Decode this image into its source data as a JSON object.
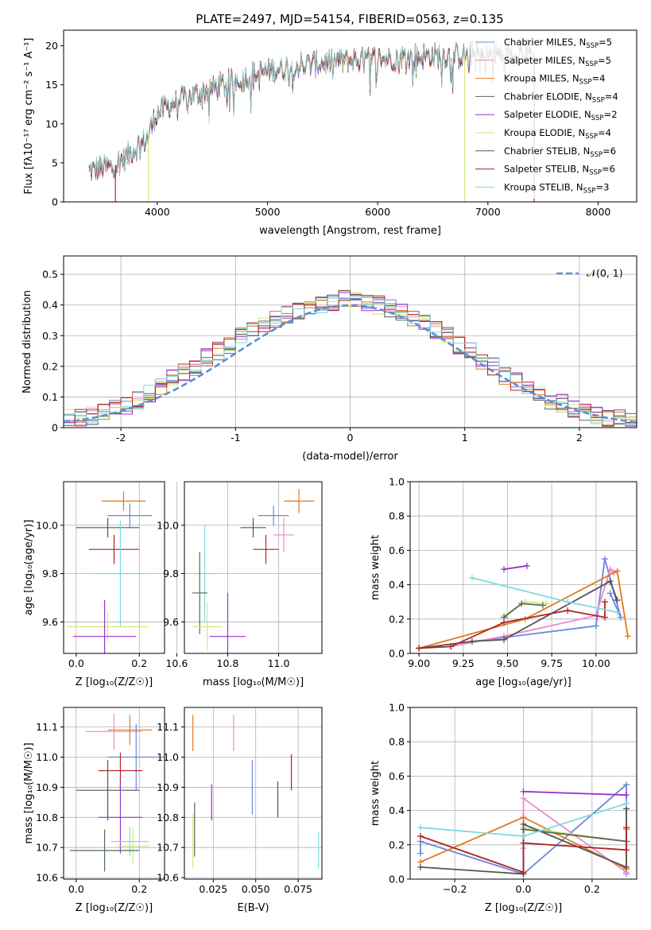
{
  "title": "PLATE=2497, MJD=54154, FIBERID=0563, z=0.135",
  "colors": {
    "chabrier_miles": "#6688dd",
    "salpeter_miles": "#ee88cc",
    "kroupa_miles": "#e07a1f",
    "chabrier_elodie": "#556b55",
    "salpeter_elodie": "#9932cc",
    "kroupa_elodie": "#d4e87a",
    "chabrier_stelib": "#555555",
    "salpeter_stelib": "#b22222",
    "kroupa_stelib": "#7fdada",
    "gauss": "#5b8fd6",
    "grid": "#b0b0b0"
  },
  "chart_data": [
    {
      "type": "line",
      "title": "PLATE=2497, MJD=54154, FIBERID=0563, z=0.135",
      "xlabel": "wavelength [Angstrom, rest frame]",
      "ylabel": "Flux [fλ10⁻¹⁷ erg cm⁻² s⁻¹ A⁻¹]",
      "xlim": [
        3150,
        8350
      ],
      "ylim": [
        0,
        22
      ],
      "xticks": [
        4000,
        5000,
        6000,
        7000,
        8000
      ],
      "yticks": [
        0,
        5,
        10,
        15,
        20
      ],
      "continuum": {
        "x": [
          3380,
          3600,
          3900,
          4000,
          4200,
          4600,
          4800,
          5000,
          5300,
          5600,
          5900,
          6200,
          6500,
          6800,
          7100,
          7400
        ],
        "y": [
          4.0,
          4.5,
          8.0,
          11.5,
          13.0,
          15.0,
          16.0,
          16.8,
          17.5,
          18.0,
          18.2,
          18.5,
          18.7,
          18.8,
          19.0,
          19.2
        ]
      },
      "legend_position": "upper-right",
      "legend": [
        {
          "key": "chabrier_miles",
          "label": "Chabrier MILES, N",
          "sub": "SSP",
          "n": "=5"
        },
        {
          "key": "salpeter_miles",
          "label": "Salpeter MILES, N",
          "sub": "SSP",
          "n": "=5"
        },
        {
          "key": "kroupa_miles",
          "label": "Kroupa MILES, N",
          "sub": "SSP",
          "n": "=4"
        },
        {
          "key": "chabrier_elodie",
          "label": "Chabrier ELODIE, N",
          "sub": "SSP",
          "n": "=4"
        },
        {
          "key": "salpeter_elodie",
          "label": "Salpeter ELODIE, N",
          "sub": "SSP",
          "n": "=2"
        },
        {
          "key": "kroupa_elodie",
          "label": "Kroupa ELODIE, N",
          "sub": "SSP",
          "n": "=4"
        },
        {
          "key": "chabrier_stelib",
          "label": "Chabrier STELIB, N",
          "sub": "SSP",
          "n": "=6"
        },
        {
          "key": "salpeter_stelib",
          "label": "Salpeter STELIB, N",
          "sub": "SSP",
          "n": "=6"
        },
        {
          "key": "kroupa_stelib",
          "label": "Kroupa STELIB, N",
          "sub": "SSP",
          "n": "=3"
        }
      ]
    },
    {
      "type": "histogram",
      "xlabel": "(data-model)/error",
      "ylabel": "Normed distribution",
      "xlim": [
        -2.5,
        2.5
      ],
      "ylim": [
        0,
        0.56
      ],
      "xticks": [
        -2,
        -1,
        0,
        1,
        2
      ],
      "yticks": [
        0.0,
        0.1,
        0.2,
        0.3,
        0.4,
        0.5
      ],
      "bin_width": 0.1,
      "gauss_legend": "𝒩(0, 1)",
      "outline": [
        0.03,
        0.03,
        0.04,
        0.05,
        0.06,
        0.07,
        0.09,
        0.11,
        0.13,
        0.16,
        0.18,
        0.2,
        0.23,
        0.25,
        0.27,
        0.3,
        0.32,
        0.33,
        0.35,
        0.37,
        0.38,
        0.39,
        0.4,
        0.41,
        0.42,
        0.42,
        0.41,
        0.4,
        0.39,
        0.38,
        0.36,
        0.34,
        0.32,
        0.3,
        0.27,
        0.25,
        0.22,
        0.2,
        0.17,
        0.15,
        0.13,
        0.11,
        0.09,
        0.08,
        0.06,
        0.05,
        0.04,
        0.03,
        0.03,
        0.02
      ]
    },
    {
      "type": "errorbar",
      "xlabel": "Z [log₁₀(Z/Z☉)]",
      "ylabel": "age  [log₁₀(age/yr)]",
      "xlim": [
        -0.04,
        0.28
      ],
      "ylim": [
        9.47,
        10.18
      ],
      "xticks": [
        {
          "v": 0.0,
          "t": "0.0"
        },
        {
          "v": 0.2,
          "t": "0.2"
        }
      ],
      "yticks": [
        {
          "v": 9.6,
          "t": "9.6"
        },
        {
          "v": 9.8,
          "t": "9.8"
        },
        {
          "v": 10.0,
          "t": "10.0"
        }
      ],
      "points": [
        {
          "c": "kroupa_miles",
          "x": 0.15,
          "xe": 0.07,
          "y": 10.1,
          "ye": 0.04
        },
        {
          "c": "chabrier_miles",
          "x": 0.17,
          "xe": 0.07,
          "y": 10.04,
          "ye": 0.05
        },
        {
          "c": "chabrier_stelib",
          "x": 0.1,
          "xe": 0.1,
          "y": 9.99,
          "ye": 0.04
        },
        {
          "c": "salpeter_stelib",
          "x": 0.12,
          "xe": 0.08,
          "y": 9.9,
          "ye": 0.06
        },
        {
          "c": "kroupa_stelib",
          "x": 0.14,
          "xe": 0.08,
          "y": 9.8,
          "ye": 0.22
        },
        {
          "c": "kroupa_elodie",
          "x": 0.1,
          "xe": 0.13,
          "y": 9.58,
          "ye": 0.06
        },
        {
          "c": "salpeter_elodie",
          "x": 0.09,
          "xe": 0.1,
          "y": 9.54,
          "ye": 0.15
        }
      ]
    },
    {
      "type": "errorbar",
      "xlabel": "mass [log₁₀(M/M☉)]",
      "ylabel": "",
      "xlim": [
        10.63,
        11.17
      ],
      "ylim": [
        9.47,
        10.18
      ],
      "xticks": [
        {
          "v": 10.6,
          "t": "10.6"
        },
        {
          "v": 10.8,
          "t": "10.8"
        },
        {
          "v": 11.0,
          "t": "11.0"
        }
      ],
      "yticks": [
        {
          "v": 9.6,
          "t": "9.6"
        },
        {
          "v": 9.8,
          "t": "9.8"
        },
        {
          "v": 10.0,
          "t": "10.0"
        }
      ],
      "points": [
        {
          "c": "kroupa_miles",
          "x": 11.08,
          "xe": 0.06,
          "y": 10.1,
          "ye": 0.05
        },
        {
          "c": "chabrier_miles",
          "x": 10.98,
          "xe": 0.06,
          "y": 10.04,
          "ye": 0.04
        },
        {
          "c": "salpeter_miles",
          "x": 11.02,
          "xe": 0.04,
          "y": 9.96,
          "ye": 0.07
        },
        {
          "c": "chabrier_stelib",
          "x": 10.9,
          "xe": 0.05,
          "y": 9.99,
          "ye": 0.04
        },
        {
          "c": "salpeter_stelib",
          "x": 10.95,
          "xe": 0.05,
          "y": 9.9,
          "ye": 0.06
        },
        {
          "c": "kroupa_stelib",
          "x": 10.71,
          "xe": 0.04,
          "y": 9.8,
          "ye": 0.2
        },
        {
          "c": "chabrier_elodie",
          "x": 10.69,
          "xe": 0.03,
          "y": 9.72,
          "ye": 0.17
        },
        {
          "c": "kroupa_elodie",
          "x": 10.72,
          "xe": 0.06,
          "y": 9.58,
          "ye": 0.1
        },
        {
          "c": "salpeter_elodie",
          "x": 10.8,
          "xe": 0.07,
          "y": 9.54,
          "ye": 0.18
        }
      ]
    },
    {
      "type": "line",
      "xlabel": "age  [log₁₀(age/yr)]",
      "ylabel": "mass weight",
      "xlim": [
        8.95,
        10.23
      ],
      "ylim": [
        0,
        1
      ],
      "xticks": [
        {
          "v": 9.0,
          "t": "9.00"
        },
        {
          "v": 9.25,
          "t": "9.25"
        },
        {
          "v": 9.5,
          "t": "9.50"
        },
        {
          "v": 9.75,
          "t": "9.75"
        },
        {
          "v": 10.0,
          "t": "10.00"
        }
      ],
      "yticks": [
        {
          "v": 0.0,
          "t": "0.0"
        },
        {
          "v": 0.2,
          "t": "0.2"
        },
        {
          "v": 0.4,
          "t": "0.4"
        },
        {
          "v": 0.6,
          "t": "0.6"
        },
        {
          "v": 0.8,
          "t": "0.8"
        },
        {
          "v": 1.0,
          "t": "1.0"
        }
      ],
      "series": [
        {
          "c": "chabrier_miles",
          "x": [
            9.0,
            10.0,
            10.05,
            10.14,
            10.08
          ],
          "y": [
            0.03,
            0.16,
            0.55,
            0.21,
            0.35
          ]
        },
        {
          "c": "salpeter_miles",
          "x": [
            9.18,
            9.48,
            10.0,
            10.08,
            10.1
          ],
          "y": [
            0.04,
            0.1,
            0.22,
            0.49,
            0.47
          ]
        },
        {
          "c": "kroupa_miles",
          "x": [
            9.0,
            9.6,
            10.12,
            10.18
          ],
          "y": [
            0.03,
            0.2,
            0.48,
            0.1
          ]
        },
        {
          "c": "salpeter_elodie",
          "x": [
            9.48,
            9.61
          ],
          "y": [
            0.49,
            0.51
          ]
        },
        {
          "c": "kroupa_elodie",
          "x": [
            9.48,
            9.6,
            9.72
          ],
          "y": [
            0.22,
            0.3,
            0.29
          ]
        },
        {
          "c": "chabrier_elodie",
          "x": [
            9.48,
            9.58,
            9.7
          ],
          "y": [
            0.21,
            0.29,
            0.28
          ]
        },
        {
          "c": "chabrier_stelib",
          "x": [
            9.0,
            9.3,
            9.48,
            10.08,
            10.12
          ],
          "y": [
            0.03,
            0.07,
            0.08,
            0.42,
            0.31
          ]
        },
        {
          "c": "salpeter_stelib",
          "x": [
            9.0,
            9.18,
            9.48,
            9.84,
            10.05,
            10.05
          ],
          "y": [
            0.03,
            0.04,
            0.18,
            0.25,
            0.21,
            0.3
          ]
        },
        {
          "c": "kroupa_stelib",
          "x": [
            9.3,
            9.84,
            10.12
          ],
          "y": [
            0.44,
            0.3,
            0.24
          ]
        }
      ]
    },
    {
      "type": "errorbar",
      "xlabel": "Z [log₁₀(Z/Z☉)]",
      "ylabel": "mass [log₁₀(M/M☉)]",
      "xlim": [
        -0.04,
        0.28
      ],
      "ylim": [
        10.595,
        11.165
      ],
      "xticks": [
        {
          "v": 0.0,
          "t": "0.0"
        },
        {
          "v": 0.2,
          "t": "0.2"
        }
      ],
      "yticks": [
        {
          "v": 10.6,
          "t": "10.6"
        },
        {
          "v": 10.7,
          "t": "10.7"
        },
        {
          "v": 10.8,
          "t": "10.8"
        },
        {
          "v": 10.9,
          "t": "10.9"
        },
        {
          "v": 11.0,
          "t": "11.0"
        },
        {
          "v": 11.1,
          "t": "11.1"
        }
      ],
      "points": [
        {
          "c": "salpeter_miles",
          "x": 0.12,
          "xe": 0.09,
          "y": 11.085,
          "ye": 0.06
        },
        {
          "c": "kroupa_miles",
          "x": 0.17,
          "xe": 0.07,
          "y": 11.09,
          "ye": 0.05
        },
        {
          "c": "chabrier_miles",
          "x": 0.19,
          "xe": 0.09,
          "y": 11.0,
          "ye": 0.11
        },
        {
          "c": "salpeter_stelib",
          "x": 0.14,
          "xe": 0.07,
          "y": 10.955,
          "ye": 0.06
        },
        {
          "c": "chabrier_stelib",
          "x": 0.1,
          "xe": 0.1,
          "y": 10.89,
          "ye": 0.1
        },
        {
          "c": "salpeter_elodie",
          "x": 0.14,
          "xe": 0.07,
          "y": 10.8,
          "ye": 0.12
        },
        {
          "c": "kroupa_stelib",
          "x": 0.17,
          "xe": 0.06,
          "y": 10.72,
          "ye": 0.05
        },
        {
          "c": "kroupa_elodie",
          "x": 0.18,
          "xe": 0.05,
          "y": 10.705,
          "ye": 0.06
        },
        {
          "c": "chabrier_elodie",
          "x": 0.09,
          "xe": 0.11,
          "y": 10.69,
          "ye": 0.07
        }
      ]
    },
    {
      "type": "errorbar",
      "xlabel": "E(B-V)",
      "ylabel": "",
      "xlim": [
        0.008,
        0.089
      ],
      "ylim": [
        10.595,
        11.165
      ],
      "xticks": [
        {
          "v": 0.025,
          "t": "0.025"
        },
        {
          "v": 0.05,
          "t": "0.050"
        },
        {
          "v": 0.075,
          "t": "0.075"
        }
      ],
      "yticks": [
        {
          "v": 10.6,
          "t": "10.6"
        },
        {
          "v": 10.7,
          "t": "10.7"
        },
        {
          "v": 10.8,
          "t": "10.8"
        },
        {
          "v": 10.9,
          "t": "10.9"
        },
        {
          "v": 11.0,
          "t": "11.0"
        },
        {
          "v": 11.1,
          "t": "11.1"
        }
      ],
      "points": [
        {
          "c": "kroupa_miles",
          "x": 0.013,
          "xe": 0,
          "y": 11.08,
          "ye": 0.06
        },
        {
          "c": "salpeter_miles",
          "x": 0.037,
          "xe": 0,
          "y": 11.08,
          "ye": 0.06
        },
        {
          "c": "salpeter_stelib",
          "x": 0.071,
          "xe": 0,
          "y": 10.95,
          "ye": 0.06
        },
        {
          "c": "chabrier_stelib",
          "x": 0.063,
          "xe": 0,
          "y": 10.86,
          "ye": 0.06
        },
        {
          "c": "chabrier_miles",
          "x": 0.048,
          "xe": 0,
          "y": 10.9,
          "ye": 0.09
        },
        {
          "c": "salpeter_elodie",
          "x": 0.024,
          "xe": 0,
          "y": 10.85,
          "ye": 0.06
        },
        {
          "c": "chabrier_elodie",
          "x": 0.014,
          "xe": 0,
          "y": 10.76,
          "ye": 0.09
        },
        {
          "c": "kroupa_elodie",
          "x": 0.013,
          "xe": 0,
          "y": 10.72,
          "ye": 0.09
        },
        {
          "c": "kroupa_stelib",
          "x": 0.087,
          "xe": 0,
          "y": 10.69,
          "ye": 0.06
        }
      ]
    },
    {
      "type": "line",
      "xlabel": "Z [log₁₀(Z/Z☉)]",
      "ylabel": "mass weight",
      "xlim": [
        -0.33,
        0.33
      ],
      "ylim": [
        0,
        1
      ],
      "xticks": [
        {
          "v": -0.2,
          "t": "−0.2"
        },
        {
          "v": 0.0,
          "t": "0.0"
        },
        {
          "v": 0.2,
          "t": "0.2"
        }
      ],
      "yticks": [
        {
          "v": 0.0,
          "t": "0.0"
        },
        {
          "v": 0.2,
          "t": "0.2"
        },
        {
          "v": 0.4,
          "t": "0.4"
        },
        {
          "v": 0.6,
          "t": "0.6"
        },
        {
          "v": 0.8,
          "t": "0.8"
        },
        {
          "v": 1.0,
          "t": "1.0"
        }
      ],
      "series": [
        {
          "c": "chabrier_miles",
          "x": [
            -0.3,
            -0.3,
            0.0,
            0.3,
            0.3
          ],
          "y": [
            0.15,
            0.22,
            0.03,
            0.55,
            0.03
          ]
        },
        {
          "c": "salpeter_miles",
          "x": [
            0.0,
            0.0,
            0.3,
            0.3
          ],
          "y": [
            0.18,
            0.47,
            0.04,
            0.3
          ]
        },
        {
          "c": "kroupa_miles",
          "x": [
            -0.3,
            0.0,
            0.3,
            0.3
          ],
          "y": [
            0.1,
            0.36,
            0.06,
            0.29
          ]
        },
        {
          "c": "salpeter_elodie",
          "x": [
            0.0,
            0.3
          ],
          "y": [
            0.51,
            0.49
          ]
        },
        {
          "c": "kroupa_elodie",
          "x": [
            0.0,
            0.3
          ],
          "y": [
            0.3,
            0.22
          ]
        },
        {
          "c": "chabrier_elodie",
          "x": [
            0.0,
            0.3
          ],
          "y": [
            0.29,
            0.22
          ]
        },
        {
          "c": "chabrier_stelib",
          "x": [
            -0.3,
            0.0,
            0.0,
            0.3,
            0.3
          ],
          "y": [
            0.07,
            0.03,
            0.32,
            0.07,
            0.41
          ]
        },
        {
          "c": "salpeter_stelib",
          "x": [
            -0.3,
            0.0,
            0.0,
            0.3,
            0.3
          ],
          "y": [
            0.25,
            0.04,
            0.21,
            0.17,
            0.3
          ]
        },
        {
          "c": "kroupa_stelib",
          "x": [
            -0.3,
            0.0,
            0.3
          ],
          "y": [
            0.3,
            0.25,
            0.44
          ]
        }
      ]
    }
  ]
}
